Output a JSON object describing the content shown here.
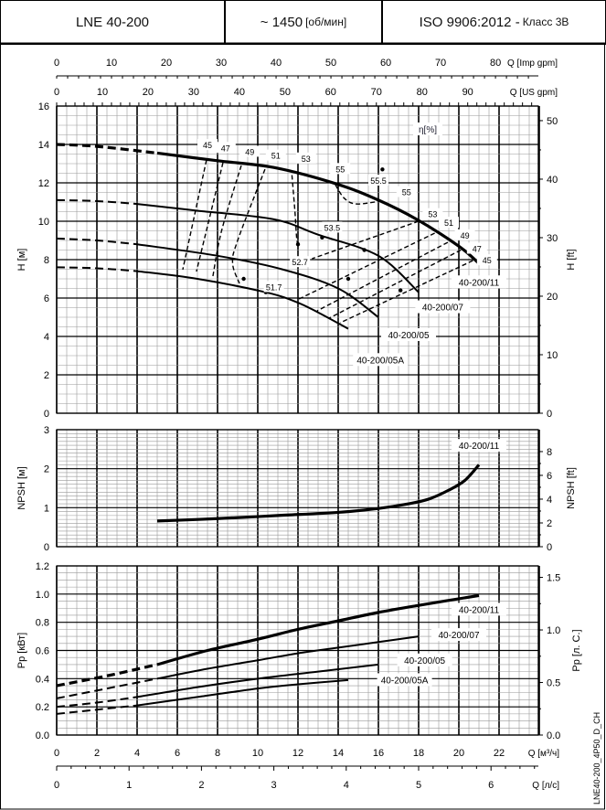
{
  "header": {
    "model": "LNE 40-200",
    "speed_prefix": "~ 1450",
    "speed_unit": "[об/мин]",
    "standard": "ISO 9906:2012 -",
    "class": "Класс 3В"
  },
  "footer_code": "LNE40-200_4P50_D_CH",
  "chart_data": [
    {
      "type": "line",
      "title": "Head",
      "xlabel": "Q [м³/ч]",
      "ylabel": "H [м]",
      "ylabel_right": "H [ft]",
      "xlim": [
        0,
        24
      ],
      "ylim": [
        0,
        16
      ],
      "yticks": [
        0,
        2,
        4,
        6,
        8,
        10,
        12,
        14,
        16
      ],
      "yticks_right": [
        0,
        10,
        20,
        30,
        40,
        50
      ],
      "top_axes": [
        {
          "label": "Q [Imp gpm]",
          "ticks": [
            0,
            10,
            20,
            30,
            40,
            50,
            60,
            70,
            80
          ],
          "per_m3h": 3.666
        },
        {
          "label": "Q [US gpm]",
          "ticks": [
            0,
            10,
            20,
            30,
            40,
            50,
            60,
            70,
            80,
            90
          ],
          "per_m3h": 4.403
        }
      ],
      "efficiency_label": "η[%]",
      "series": [
        {
          "name": "40-200/11",
          "bold": true,
          "dashed_until": 5,
          "points": [
            [
              0,
              14.0
            ],
            [
              2,
              13.9
            ],
            [
              5,
              13.55
            ],
            [
              8,
              13.15
            ],
            [
              10.8,
              12.8
            ],
            [
              13.9,
              11.95
            ],
            [
              16,
              11.1
            ],
            [
              17.9,
              10.1
            ],
            [
              20,
              8.7
            ],
            [
              21,
              7.8
            ]
          ]
        },
        {
          "name": "40-200/07",
          "dashed_until": 4,
          "points": [
            [
              0,
              11.1
            ],
            [
              2,
              11.05
            ],
            [
              4,
              10.9
            ],
            [
              7,
              10.55
            ],
            [
              10.8,
              10.1
            ],
            [
              13,
              9.3
            ],
            [
              16,
              8.2
            ],
            [
              18,
              6.3
            ]
          ]
        },
        {
          "name": "40-200/05",
          "dashed_until": 4,
          "points": [
            [
              0,
              9.1
            ],
            [
              2,
              9.0
            ],
            [
              4,
              8.8
            ],
            [
              8,
              8.2
            ],
            [
              11.2,
              7.5
            ],
            [
              14,
              6.5
            ],
            [
              16,
              5.0
            ]
          ]
        },
        {
          "name": "40-200/05A",
          "dashed_until": 4,
          "points": [
            [
              0,
              7.6
            ],
            [
              2,
              7.55
            ],
            [
              4,
              7.4
            ],
            [
              7,
              7.0
            ],
            [
              10.4,
              6.3
            ],
            [
              11.9,
              5.8
            ],
            [
              13,
              5.25
            ],
            [
              14.5,
              4.4
            ]
          ]
        }
      ],
      "efficiency_contours": [
        {
          "label": "45",
          "points": [
            [
              7.45,
              13.19
            ],
            [
              6.27,
              7.48
            ]
          ]
        },
        {
          "label": "47",
          "points": [
            [
              8.27,
              13.05
            ],
            [
              6.95,
              7.38
            ]
          ]
        },
        {
          "label": "49",
          "points": [
            [
              9.18,
              12.9
            ],
            [
              8.2,
              9.5
            ],
            [
              7.77,
              7.14
            ]
          ]
        },
        {
          "label": "51",
          "points": [
            [
              10.36,
              12.71
            ],
            [
              9.0,
              9.0
            ],
            [
              8.75,
              7.8
            ],
            [
              9.09,
              6.76
            ]
          ]
        },
        {
          "label": "53",
          "points": [
            [
              11.7,
              12.4
            ],
            [
              11.85,
              10.5
            ],
            [
              11.95,
              9.0
            ],
            [
              12.1,
              8.7
            ]
          ]
        },
        {
          "label": "55",
          "points": [
            [
              13.86,
              11.9
            ],
            [
              14.3,
              11.2
            ],
            [
              14.9,
              10.9
            ],
            [
              16.1,
              11.05
            ]
          ]
        },
        {
          "label": "53",
          "points": [
            [
              18.0,
              10.0
            ],
            [
              12.7,
              8.05
            ]
          ]
        },
        {
          "label": "51",
          "points": [
            [
              18.8,
              9.38
            ],
            [
              11.95,
              5.9
            ]
          ]
        },
        {
          "label": "49",
          "points": [
            [
              19.45,
              8.9
            ],
            [
              12.95,
              5.33
            ]
          ]
        },
        {
          "label": "47",
          "points": [
            [
              20.1,
              8.5
            ],
            [
              13.55,
              4.95
            ]
          ]
        },
        {
          "label": "45",
          "points": [
            [
              20.7,
              7.95
            ],
            [
              14.1,
              4.71
            ]
          ]
        }
      ],
      "efficiency_labels": [
        {
          "text": "45",
          "at": [
            7.5,
            13.9
          ]
        },
        {
          "text": "47",
          "at": [
            8.4,
            13.75
          ]
        },
        {
          "text": "49",
          "at": [
            9.6,
            13.55
          ]
        },
        {
          "text": "51",
          "at": [
            10.9,
            13.35
          ]
        },
        {
          "text": "53",
          "at": [
            12.4,
            13.2
          ]
        },
        {
          "text": "55",
          "at": [
            14.1,
            12.65
          ]
        },
        {
          "text": "55.5",
          "at": [
            16.0,
            12.05
          ]
        },
        {
          "text": "55",
          "at": [
            17.4,
            11.45
          ]
        },
        {
          "text": "53",
          "at": [
            18.7,
            10.3
          ]
        },
        {
          "text": "51",
          "at": [
            19.5,
            9.85
          ]
        },
        {
          "text": "49",
          "at": [
            20.3,
            9.2
          ]
        },
        {
          "text": "47",
          "at": [
            20.9,
            8.5
          ]
        },
        {
          "text": "45",
          "at": [
            21.4,
            7.9
          ]
        },
        {
          "text": "53.5",
          "at": [
            13.7,
            9.6
          ]
        },
        {
          "text": "52.7",
          "at": [
            12.1,
            7.8
          ]
        },
        {
          "text": "51.7",
          "at": [
            10.8,
            6.5
          ]
        }
      ],
      "efficiency_markers": [
        [
          13.2,
          9.15
        ],
        [
          9.3,
          7.0
        ],
        [
          12,
          8.8
        ],
        [
          10.4,
          6.3
        ],
        [
          12.1,
          7.9
        ],
        [
          16.2,
          12.7
        ],
        [
          15.3,
          8.5
        ],
        [
          14.5,
          7.0
        ],
        [
          17.1,
          6.4
        ]
      ],
      "series_labels": [
        {
          "text": "40-200/11",
          "at": [
            21.0,
            6.75
          ]
        },
        {
          "text": "40-200/07",
          "at": [
            19.2,
            5.45
          ]
        },
        {
          "text": "40-200/05",
          "at": [
            17.5,
            4.0
          ]
        },
        {
          "text": "40-200/05A",
          "at": [
            16.1,
            2.7
          ]
        }
      ]
    },
    {
      "type": "line",
      "title": "NPSH",
      "xlabel": "Q [м³/ч]",
      "ylabel": "NPSH [м]",
      "ylabel_right": "NPSH [ft]",
      "xlim": [
        0,
        24
      ],
      "ylim": [
        0,
        3
      ],
      "yticks": [
        0,
        1,
        2,
        3
      ],
      "yticks_right": [
        0,
        2,
        4,
        6,
        8
      ],
      "series": [
        {
          "name": "40-200/11",
          "bold": true,
          "points": [
            [
              5,
              0.66
            ],
            [
              8,
              0.72
            ],
            [
              11,
              0.8
            ],
            [
              14,
              0.88
            ],
            [
              16,
              0.98
            ],
            [
              17.5,
              1.1
            ],
            [
              18.5,
              1.22
            ],
            [
              19.5,
              1.45
            ],
            [
              20.3,
              1.7
            ],
            [
              21,
              2.1
            ]
          ]
        }
      ],
      "series_labels": [
        {
          "text": "40-200/11",
          "at": [
            21.0,
            2.55
          ]
        }
      ]
    },
    {
      "type": "line",
      "title": "Power",
      "xlabel": "Q [м³/ч]",
      "ylabel": "Pp [кВт]",
      "ylabel_right": "Pp [л. С.]",
      "xlim": [
        0,
        24
      ],
      "ylim": [
        0,
        1.2
      ],
      "yticks": [
        0.0,
        0.2,
        0.4,
        0.6,
        0.8,
        1.0,
        1.2
      ],
      "yticks_right": [
        0.0,
        0.5,
        1.0,
        1.5
      ],
      "xticks": [
        0,
        2,
        4,
        6,
        8,
        10,
        12,
        14,
        16,
        18,
        20,
        22
      ],
      "x2label": "Q [л/с]",
      "x2ticks": [
        0,
        1,
        2,
        3,
        4,
        5,
        6
      ],
      "series": [
        {
          "name": "40-200/11",
          "bold": true,
          "dashed_until": 5,
          "points": [
            [
              0,
              0.35
            ],
            [
              2.5,
              0.42
            ],
            [
              5,
              0.5
            ],
            [
              7.5,
              0.6
            ],
            [
              10,
              0.68
            ],
            [
              12,
              0.75
            ],
            [
              14,
              0.81
            ],
            [
              16,
              0.87
            ],
            [
              18,
              0.92
            ],
            [
              21,
              0.99
            ]
          ]
        },
        {
          "name": "40-200/07",
          "dashed_until": 5,
          "points": [
            [
              0,
              0.26
            ],
            [
              2.5,
              0.33
            ],
            [
              5,
              0.4
            ],
            [
              7.5,
              0.47
            ],
            [
              10,
              0.53
            ],
            [
              12,
              0.58
            ],
            [
              14,
              0.62
            ],
            [
              16,
              0.66
            ],
            [
              18,
              0.7
            ]
          ]
        },
        {
          "name": "40-200/05",
          "dashed_until": 4,
          "points": [
            [
              0,
              0.2
            ],
            [
              2,
              0.23
            ],
            [
              4,
              0.27
            ],
            [
              7,
              0.34
            ],
            [
              10,
              0.4
            ],
            [
              13,
              0.45
            ],
            [
              16,
              0.5
            ]
          ]
        },
        {
          "name": "40-200/05A",
          "dashed_until": 4,
          "points": [
            [
              0,
              0.15
            ],
            [
              2,
              0.18
            ],
            [
              4,
              0.21
            ],
            [
              7,
              0.27
            ],
            [
              10,
              0.33
            ],
            [
              12,
              0.36
            ],
            [
              14.5,
              0.39
            ]
          ]
        }
      ],
      "series_labels": [
        {
          "text": "40-200/11",
          "at": [
            21.0,
            0.88
          ]
        },
        {
          "text": "40-200/07",
          "at": [
            20.0,
            0.7
          ]
        },
        {
          "text": "40-200/05",
          "at": [
            18.3,
            0.52
          ]
        },
        {
          "text": "40-200/05A",
          "at": [
            17.3,
            0.38
          ]
        }
      ]
    }
  ]
}
